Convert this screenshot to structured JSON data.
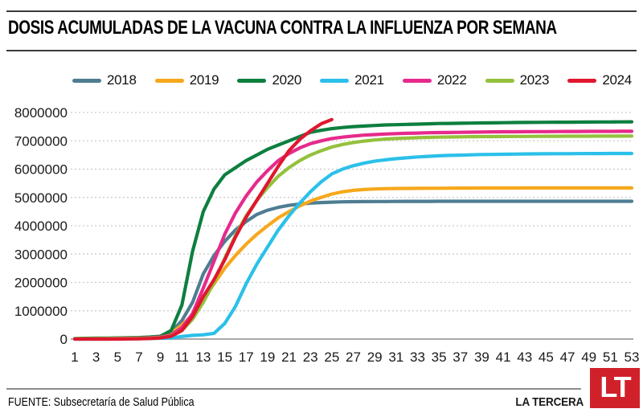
{
  "header": {
    "title": "DOSIS ACUMULADAS DE LA VACUNA CONTRA LA INFLUENZA POR SEMANA"
  },
  "footer": {
    "source": "FUENTE: Subsecretaría de Salud Pública",
    "brand": "LA TERCERA",
    "logo_text": "LT",
    "logo_color": "#d0212a"
  },
  "colors": {
    "gridline": "#c9c9c9",
    "axis_line": "#a8a8a8",
    "tick_text": "#1a1a1a"
  },
  "chart_data": {
    "type": "line",
    "title": "DOSIS ACUMULADAS DE LA VACUNA CONTRA LA INFLUENZA POR SEMANA",
    "xlabel": "",
    "ylabel": "",
    "x_unit": "semana",
    "x_range": [
      1,
      53
    ],
    "xticks": [
      1,
      3,
      5,
      7,
      9,
      11,
      13,
      15,
      17,
      19,
      21,
      23,
      25,
      27,
      29,
      31,
      33,
      35,
      37,
      39,
      41,
      43,
      45,
      47,
      49,
      51,
      53
    ],
    "ylim": [
      0,
      8000000
    ],
    "yticks": [
      0,
      1000000,
      2000000,
      3000000,
      4000000,
      5000000,
      6000000,
      7000000,
      8000000
    ],
    "grid": "dashed-horizontal",
    "legend_position": "top",
    "series": [
      {
        "name": "2018",
        "color": "#4e7d91",
        "values": [
          10000,
          15000,
          20000,
          25000,
          30000,
          35000,
          40000,
          50000,
          80000,
          250000,
          650000,
          1300000,
          2300000,
          2950000,
          3450000,
          3850000,
          4150000,
          4400000,
          4550000,
          4650000,
          4720000,
          4770000,
          4800000,
          4820000,
          4835000,
          4845000,
          4850000,
          4853000,
          4856000,
          4858000,
          4860000,
          4861000,
          4862000,
          4863000,
          4864000,
          4864000,
          4865000,
          4865000,
          4865000,
          4865000,
          4865000,
          4865000,
          4865000,
          4865000,
          4865000,
          4865000,
          4865000,
          4865000,
          4865000,
          4865000,
          4865000,
          4865000,
          4865000
        ]
      },
      {
        "name": "2019",
        "color": "#f6a81c",
        "values": [
          10000,
          12000,
          15000,
          18000,
          22000,
          26000,
          30000,
          40000,
          60000,
          200000,
          500000,
          850000,
          1400000,
          1950000,
          2500000,
          2950000,
          3350000,
          3700000,
          4000000,
          4280000,
          4500000,
          4700000,
          4870000,
          5000000,
          5120000,
          5200000,
          5250000,
          5280000,
          5300000,
          5310000,
          5315000,
          5320000,
          5322000,
          5324000,
          5326000,
          5328000,
          5330000,
          5331000,
          5332000,
          5333000,
          5334000,
          5334000,
          5335000,
          5335000,
          5335000,
          5335000,
          5335000,
          5335000,
          5335000,
          5335000,
          5335000,
          5335000,
          5335000
        ]
      },
      {
        "name": "2020",
        "color": "#0d7f3f",
        "values": [
          20000,
          25000,
          30000,
          35000,
          40000,
          45000,
          55000,
          70000,
          100000,
          300000,
          1200000,
          3100000,
          4500000,
          5300000,
          5800000,
          6050000,
          6300000,
          6500000,
          6700000,
          6850000,
          7000000,
          7150000,
          7300000,
          7370000,
          7430000,
          7470000,
          7500000,
          7520000,
          7540000,
          7560000,
          7570000,
          7580000,
          7590000,
          7600000,
          7610000,
          7615000,
          7620000,
          7625000,
          7630000,
          7635000,
          7640000,
          7645000,
          7648000,
          7651000,
          7654000,
          7656000,
          7658000,
          7660000,
          7662000,
          7664000,
          7666000,
          7668000,
          7670000
        ]
      },
      {
        "name": "2021",
        "color": "#2bc0e9",
        "values": [
          0,
          0,
          0,
          0,
          5000,
          10000,
          15000,
          20000,
          30000,
          40000,
          90000,
          130000,
          150000,
          200000,
          550000,
          1150000,
          1950000,
          2650000,
          3250000,
          3850000,
          4350000,
          4800000,
          5200000,
          5550000,
          5830000,
          6000000,
          6120000,
          6210000,
          6280000,
          6330000,
          6370000,
          6400000,
          6430000,
          6450000,
          6470000,
          6485000,
          6495000,
          6505000,
          6515000,
          6520000,
          6525000,
          6530000,
          6535000,
          6540000,
          6542000,
          6544000,
          6546000,
          6548000,
          6550000,
          6551000,
          6552000,
          6553000,
          6554000
        ]
      },
      {
        "name": "2022",
        "color": "#e62a8b",
        "values": [
          10000,
          12000,
          15000,
          20000,
          25000,
          30000,
          35000,
          45000,
          70000,
          150000,
          400000,
          900000,
          1800000,
          2750000,
          3700000,
          4450000,
          5050000,
          5550000,
          5950000,
          6300000,
          6550000,
          6750000,
          6900000,
          7000000,
          7080000,
          7130000,
          7170000,
          7200000,
          7220000,
          7240000,
          7255000,
          7265000,
          7275000,
          7285000,
          7290000,
          7295000,
          7300000,
          7305000,
          7310000,
          7315000,
          7318000,
          7320000,
          7322000,
          7324000,
          7326000,
          7328000,
          7330000,
          7331000,
          7332000,
          7333000,
          7334000,
          7335000,
          7336000
        ]
      },
      {
        "name": "2023",
        "color": "#94c13d",
        "values": [
          10000,
          12000,
          14000,
          17000,
          20000,
          24000,
          28000,
          35000,
          55000,
          120000,
          300000,
          700000,
          1300000,
          2000000,
          2850000,
          3650000,
          4350000,
          4900000,
          5350000,
          5750000,
          6050000,
          6300000,
          6500000,
          6650000,
          6780000,
          6870000,
          6940000,
          6990000,
          7030000,
          7060000,
          7080000,
          7095000,
          7110000,
          7120000,
          7130000,
          7135000,
          7140000,
          7145000,
          7148000,
          7150000,
          7152000,
          7154000,
          7156000,
          7158000,
          7160000,
          7161000,
          7162000,
          7163000,
          7164000,
          7165000,
          7166000,
          7167000,
          7168000
        ]
      },
      {
        "name": "2024",
        "color": "#e0172f",
        "values": [
          0,
          0,
          0,
          0,
          0,
          5000,
          10000,
          20000,
          40000,
          100000,
          300000,
          800000,
          1500000,
          2100000,
          2800000,
          3600000,
          4300000,
          4900000,
          5500000,
          6100000,
          6650000,
          7050000,
          7350000,
          7600000,
          7750000
        ]
      }
    ]
  }
}
